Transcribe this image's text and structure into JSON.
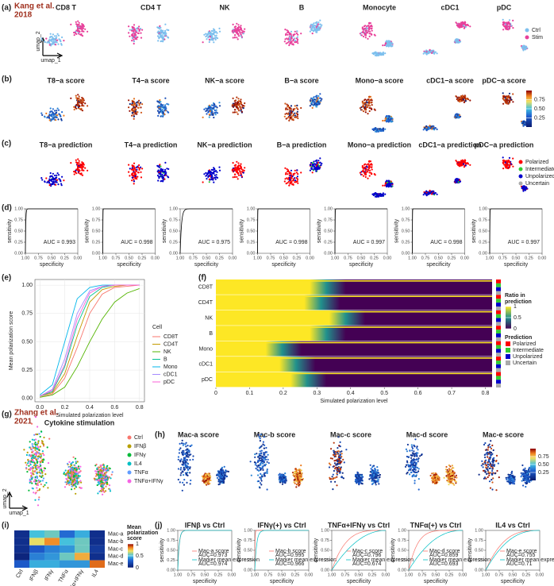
{
  "roc_axes": {
    "xlabel": "specificity",
    "ylabel": "sensitivity",
    "xticks": [
      {
        "value": 1,
        "label": "1.00"
      },
      {
        "value": 0.75,
        "label": "0.75"
      },
      {
        "value": 0.5,
        "label": "0.50"
      },
      {
        "value": 0.25,
        "label": "0.25"
      },
      {
        "value": 0,
        "label": "0.00"
      }
    ],
    "yticks": [
      {
        "value": 0,
        "label": "0.00"
      },
      {
        "value": 0.25,
        "label": "0.25"
      },
      {
        "value": 0.5,
        "label": "0.50"
      },
      {
        "value": 0.75,
        "label": "0.75"
      },
      {
        "value": 1,
        "label": "1.00"
      }
    ]
  },
  "panel_a": {
    "label": "(a)",
    "source_lines": [
      "Kang et al.",
      "2018"
    ],
    "titles": [
      "CD8 T",
      "CD4 T",
      "NK",
      "B",
      "Monocyte",
      "cDC1",
      "pDC"
    ],
    "umap_x": "umap_1",
    "umap_y": "umap_2",
    "legend": [
      {
        "name": "Ctrl",
        "color": "#7ec0ee"
      },
      {
        "name": "Stim",
        "color": "#e8409a"
      }
    ]
  },
  "panel_b": {
    "label": "(b)",
    "titles": [
      "T8−a score",
      "T4−a score",
      "NK−a score",
      "B−a score",
      "Mono−a score",
      "cDC1−a score",
      "pDC−a score"
    ],
    "colorbar_ticks": [
      {
        "value": 0.75,
        "label": "0.75"
      },
      {
        "value": 0.5,
        "label": "0.50"
      },
      {
        "value": 0.25,
        "label": "0.25"
      }
    ]
  },
  "panel_c": {
    "label": "(c)",
    "titles": [
      "T8−a prediction",
      "T4−a prediction",
      "NK−a prediction",
      "B−a prediction",
      "Mono−a prediction",
      "cDC1−a prediction",
      "pDC−a prediction"
    ],
    "legend": [
      {
        "name": "Polarized",
        "color": "#ff0000"
      },
      {
        "name": "Intermediate",
        "color": "#33cc33"
      },
      {
        "name": "Unpolarized",
        "color": "#0000cc"
      },
      {
        "name": "Uncertain",
        "color": "#aaaaaa"
      }
    ]
  },
  "panel_d": {
    "label": "(d)",
    "auc": [
      0.993,
      0.998,
      0.975,
      0.998,
      0.997,
      0.998,
      0.997
    ],
    "auc_labels": [
      "AUC = 0.993",
      "AUC = 0.998",
      "AUC = 0.975",
      "AUC = 0.998",
      "AUC = 0.997",
      "AUC = 0.998",
      "AUC = 0.997"
    ]
  },
  "panel_e": {
    "label": "(e)",
    "type": "line",
    "xlabel": "Simulated polarization level",
    "ylabel": "Mean polarization score",
    "legend_title": "Cell",
    "xlim": [
      -0.04,
      0.84
    ],
    "ylim": [
      -0.03,
      1.05
    ],
    "xticks": [
      {
        "value": 0,
        "label": "0.0"
      },
      {
        "value": 0.2,
        "label": "0.2"
      },
      {
        "value": 0.4,
        "label": "0.4"
      },
      {
        "value": 0.6,
        "label": "0.6"
      },
      {
        "value": 0.8,
        "label": "0.8"
      }
    ],
    "yticks": [
      {
        "value": 0,
        "label": "0.00"
      },
      {
        "value": 0.25,
        "label": "0.25"
      },
      {
        "value": 0.5,
        "label": "0.50"
      },
      {
        "value": 0.75,
        "label": "0.75"
      },
      {
        "value": 1,
        "label": "1.00"
      }
    ],
    "x": [
      0,
      0.1,
      0.2,
      0.3,
      0.4,
      0.5,
      0.6,
      0.7,
      0.8
    ],
    "series": [
      {
        "name": "CD8T",
        "color": "#f8766d",
        "values": [
          0.01,
          0.04,
          0.18,
          0.45,
          0.75,
          0.92,
          0.98,
          0.99,
          1
        ]
      },
      {
        "name": "CD4T",
        "color": "#c49a00",
        "values": [
          0.02,
          0.05,
          0.22,
          0.55,
          0.85,
          0.96,
          0.99,
          1,
          1
        ]
      },
      {
        "name": "NK",
        "color": "#53b400",
        "values": [
          0.01,
          0.03,
          0.1,
          0.28,
          0.5,
          0.7,
          0.85,
          0.93,
          0.97
        ]
      },
      {
        "name": "B",
        "color": "#00c094",
        "values": [
          0.02,
          0.06,
          0.28,
          0.65,
          0.9,
          0.98,
          1,
          1,
          1
        ]
      },
      {
        "name": "Mono",
        "color": "#00b6eb",
        "values": [
          0.03,
          0.12,
          0.5,
          0.88,
          0.98,
          1,
          1,
          1,
          1
        ]
      },
      {
        "name": "cDC1",
        "color": "#a58aff",
        "values": [
          0.02,
          0.08,
          0.35,
          0.75,
          0.95,
          0.99,
          1,
          1,
          1
        ]
      },
      {
        "name": "pDC",
        "color": "#fb61d7",
        "values": [
          0.02,
          0.07,
          0.3,
          0.7,
          0.93,
          0.99,
          1,
          1,
          1
        ]
      }
    ]
  },
  "panel_f": {
    "label": "(f)",
    "rows": [
      "CD8T",
      "CD4T",
      "NK",
      "B",
      "Mono",
      "cDC1",
      "pDC"
    ],
    "xlabel": "Simulated polarization level",
    "xlim": [
      0,
      0.82
    ],
    "xticks": [
      0,
      0.1,
      0.2,
      0.3,
      0.4,
      0.5,
      0.6,
      0.7,
      0.8
    ],
    "ratio_title_lines": [
      "Ratio in",
      "prediction"
    ],
    "ratio_ticks": [
      1,
      0.5,
      0
    ],
    "prediction_title": "Prediction",
    "prediction_legend": [
      "Polarized",
      "Intermediate",
      "Unpolarized",
      "Uncertain"
    ]
  },
  "panel_g": {
    "label": "(g)",
    "source_lines": [
      "Zhang et al.",
      "2021"
    ],
    "title": "Cytokine stimulation",
    "umap_x": "umap_1",
    "umap_y": "umap_2",
    "legend": [
      {
        "name": "Ctrl",
        "color": "#f8766d"
      },
      {
        "name": "IFNβ",
        "color": "#b79f00"
      },
      {
        "name": "IFNγ",
        "color": "#00ba38"
      },
      {
        "name": "IL4",
        "color": "#00bfc4"
      },
      {
        "name": "TNFα",
        "color": "#619cff"
      },
      {
        "name": "TNFα+IFNγ",
        "color": "#f564e3"
      }
    ]
  },
  "panel_h": {
    "label": "(h)",
    "titles": [
      "Mac-a score",
      "Mac-b score",
      "Mac-c score",
      "Mac-d score",
      "Mac-e score"
    ],
    "colorbar_ticks": [
      {
        "value": 0.75,
        "label": "0.75"
      },
      {
        "value": 0.5,
        "label": "0.50"
      },
      {
        "value": 0.25,
        "label": "0.25"
      }
    ]
  },
  "panel_i": {
    "label": "(i)",
    "rows": [
      "Mac-a",
      "Mac-b",
      "Mac-c",
      "Mac-d",
      "Mac-e"
    ],
    "columns": [
      "Ctrl",
      "IFNβ",
      "IFNγ",
      "TNFα",
      "TNFα+IFNγ",
      "IL4"
    ],
    "values": [
      [
        0.1,
        0.55,
        0.6,
        0.35,
        0.5,
        0.1
      ],
      [
        0.1,
        0.75,
        0.9,
        0.55,
        0.6,
        0.1
      ],
      [
        0.1,
        0.3,
        0.4,
        0.45,
        0.6,
        0.15
      ],
      [
        0.05,
        0.4,
        0.45,
        0.6,
        0.85,
        0.1
      ],
      [
        0.3,
        0.5,
        0.5,
        0.45,
        0.45,
        0.95
      ]
    ],
    "legend_title_lines": [
      "Mean",
      "polarization",
      "score"
    ],
    "colorbar_ticks": [
      1,
      0.5,
      0
    ]
  },
  "panel_j": {
    "label": "(j)",
    "plots": [
      {
        "title": "IFNβ vs Ctrl",
        "series": [
          {
            "name": "Mac-a score",
            "color": "#f8766d",
            "auc": 0.973,
            "auc_label": "AUC=0.973"
          },
          {
            "name": "Marker mean expression",
            "color": "#00bfc4",
            "auc": 0.974,
            "auc_label": "AUC=0.974"
          }
        ]
      },
      {
        "title": "IFNγ(+) vs Ctrl",
        "series": [
          {
            "name": "Mac-b score",
            "color": "#f8766d",
            "auc": 0.995,
            "auc_label": "AUC=0.995"
          },
          {
            "name": "Marker mean expression",
            "color": "#00bfc4",
            "auc": 0.966,
            "auc_label": "AUC=0.966"
          }
        ]
      },
      {
        "title": "TNFα+IFNγ vs Ctrl",
        "series": [
          {
            "name": "Mac-c score",
            "color": "#f8766d",
            "auc": 0.796,
            "auc_label": "AUC=0.796"
          },
          {
            "name": "Marker mean expression",
            "color": "#00bfc4",
            "auc": 0.674,
            "auc_label": "AUC=0.674"
          }
        ]
      },
      {
        "title": "TNFα(+) vs Ctrl",
        "series": [
          {
            "name": "Mac-d score",
            "color": "#f8766d",
            "auc": 0.859,
            "auc_label": "AUC=0.859"
          },
          {
            "name": "Marker mean expression",
            "color": "#00bfc4",
            "auc": 0.693,
            "auc_label": "AUC=0.693"
          }
        ]
      },
      {
        "title": "IL4 vs Ctrl",
        "series": [
          {
            "name": "Mac-e score",
            "color": "#f8766d",
            "auc": 0.755,
            "auc_label": "AUC=0.755"
          },
          {
            "name": "Marker mean expression",
            "color": "#00bfc4",
            "auc": 0.71,
            "auc_label": "AUC=0.71"
          }
        ]
      }
    ]
  }
}
